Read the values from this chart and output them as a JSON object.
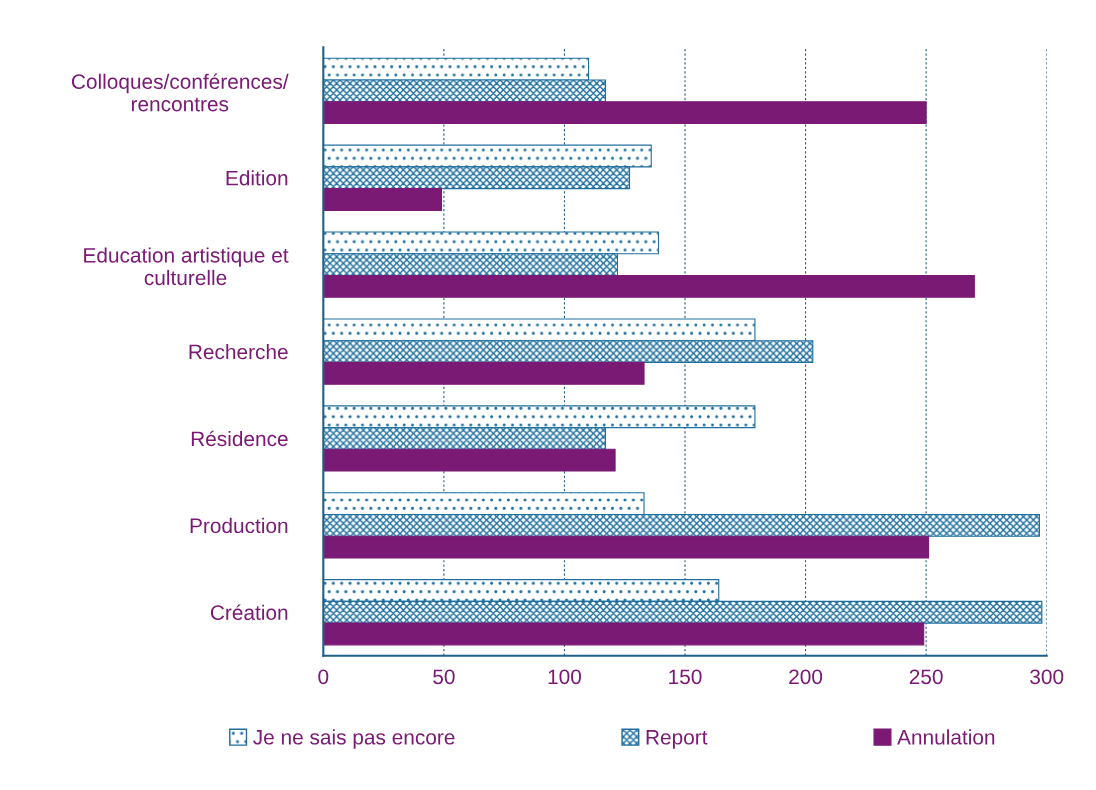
{
  "chart_data": {
    "type": "bar",
    "orientation": "horizontal",
    "categories": [
      "Colloques/conférences/\nrencontres",
      "Edition",
      "Education artistique et\nculturelle",
      "Recherche",
      "Résidence",
      "Production",
      "Création"
    ],
    "series": [
      {
        "name": "Je ne sais pas encore",
        "color": "#1f6f9f",
        "values": [
          110,
          136,
          139,
          179,
          179,
          133,
          164
        ]
      },
      {
        "name": "Report",
        "color": "#1f6f9f",
        "values": [
          117,
          127,
          122,
          203,
          117,
          297,
          298
        ]
      },
      {
        "name": "Annulation",
        "color": "#7b1a74",
        "values": [
          250,
          49,
          270,
          133,
          121,
          251,
          249
        ]
      }
    ],
    "xlim": [
      0,
      300
    ],
    "xticks": [
      0,
      50,
      100,
      150,
      200,
      250,
      300
    ],
    "grid": "x",
    "legend": "bottom"
  }
}
